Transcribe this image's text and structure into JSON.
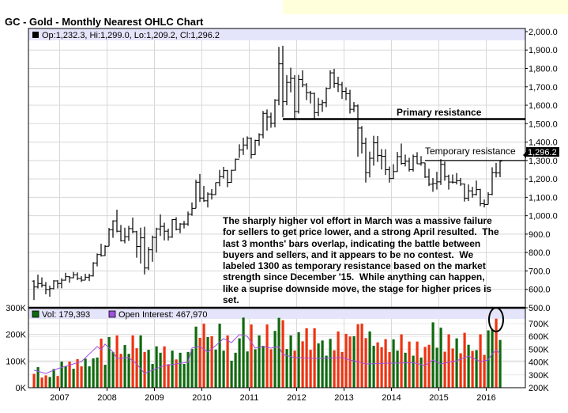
{
  "title": "GC - Gold - Monthly Nearest OHLC Chart",
  "price_legend": "Op:1,232.3, Hi:1,299.0, Lo:1,209.2, Cl:1,296.2",
  "last_price_label": "1,296.2",
  "volume_legend": {
    "vol": "Vol: 179,393",
    "oi": "Open Interest: 467,970"
  },
  "annotations": {
    "primary_resistance": "Primary resistance",
    "temporary_resistance": "Temporary resistance",
    "note_lines": [
      "The sharply higher vol effort in March was a massive failure",
      "for sellers to get price lower, and a strong April resulted.  The",
      "last 3 months' bars overlap, indicating the battle between",
      "buyers and sellers, and it appears to be no contest.  We",
      "labeled 1300 as temporary resistance based on the market",
      "strength since December '15.  While anything can happen,",
      "like a suprise downside move, the stage for higher prices is",
      "set."
    ]
  },
  "colors": {
    "up": "#0f6a0f",
    "down": "#ee3311",
    "oi": "#a050e0",
    "legend_bg": "#e4e4fa",
    "grid": "#d8d8d8",
    "highlight_box": "#ffffdc"
  },
  "chart_data": {
    "type": "ohlc",
    "title": "GC - Gold - Monthly Nearest OHLC Chart",
    "x_start": "2006-06",
    "x_end": "2016-04",
    "x_ticks": [
      "2007",
      "2008",
      "2009",
      "2010",
      "2011",
      "2012",
      "2013",
      "2014",
      "2015",
      "2016"
    ],
    "price_axis": {
      "range": [
        500,
        2000
      ],
      "ticks": [
        "500.0",
        "600.0",
        "700.0",
        "800.0",
        "900.0",
        "1,000.0",
        "1,100.0",
        "1,200.0",
        "1,300.0",
        "1,400.0",
        "1,500.0",
        "1,600.0",
        "1,700.0",
        "1,800.0",
        "1,900.0",
        "2,000.0"
      ]
    },
    "volume_axis": {
      "range_k": [
        0,
        300
      ],
      "ticks": [
        "0K",
        "100K",
        "200K",
        "300K"
      ]
    },
    "open_interest_axis": {
      "range_k": [
        200,
        750
      ],
      "ticks": [
        "200K",
        "300K",
        "400K",
        "500K",
        "600K",
        "700K"
      ]
    },
    "grid": true,
    "resistance_levels": {
      "primary": 1525,
      "temporary": 1300
    },
    "ohlc": [
      [
        645,
        650,
        542,
        613
      ],
      [
        613,
        680,
        605,
        632
      ],
      [
        632,
        665,
        610,
        623
      ],
      [
        623,
        640,
        573,
        599
      ],
      [
        599,
        620,
        560,
        604
      ],
      [
        604,
        650,
        600,
        646
      ],
      [
        646,
        650,
        605,
        632
      ],
      [
        632,
        660,
        606,
        650
      ],
      [
        650,
        690,
        647,
        669
      ],
      [
        669,
        672,
        636,
        663
      ],
      [
        663,
        695,
        660,
        679
      ],
      [
        679,
        692,
        650,
        659
      ],
      [
        659,
        672,
        640,
        650
      ],
      [
        650,
        685,
        650,
        666
      ],
      [
        666,
        685,
        645,
        673
      ],
      [
        673,
        748,
        670,
        743
      ],
      [
        743,
        795,
        725,
        789
      ],
      [
        789,
        848,
        778,
        783
      ],
      [
        783,
        840,
        782,
        834
      ],
      [
        834,
        934,
        834,
        923
      ],
      [
        923,
        975,
        880,
        972
      ],
      [
        972,
        1033,
        910,
        916
      ],
      [
        916,
        950,
        860,
        864
      ],
      [
        864,
        935,
        850,
        886
      ],
      [
        886,
        945,
        863,
        930
      ],
      [
        930,
        990,
        905,
        913
      ],
      [
        913,
        918,
        772,
        833
      ],
      [
        833,
        935,
        740,
        880
      ],
      [
        880,
        940,
        681,
        716
      ],
      [
        716,
        830,
        705,
        815
      ],
      [
        815,
        892,
        750,
        882
      ],
      [
        882,
        935,
        800,
        928
      ],
      [
        928,
        1007,
        890,
        942
      ],
      [
        942,
        962,
        866,
        916
      ],
      [
        916,
        930,
        865,
        884
      ],
      [
        884,
        982,
        880,
        979
      ],
      [
        979,
        992,
        920,
        926
      ],
      [
        926,
        960,
        905,
        955
      ],
      [
        955,
        972,
        931,
        955
      ],
      [
        955,
        1023,
        945,
        1008
      ],
      [
        1008,
        1072,
        1000,
        1040
      ],
      [
        1040,
        1195,
        1040,
        1182
      ],
      [
        1182,
        1227,
        1075,
        1096
      ],
      [
        1096,
        1162,
        1075,
        1081
      ],
      [
        1081,
        1127,
        1045,
        1118
      ],
      [
        1118,
        1145,
        1088,
        1115
      ],
      [
        1115,
        1180,
        1112,
        1180
      ],
      [
        1180,
        1249,
        1160,
        1212
      ],
      [
        1212,
        1265,
        1202,
        1245
      ],
      [
        1245,
        1249,
        1155,
        1181
      ],
      [
        1181,
        1250,
        1179,
        1247
      ],
      [
        1247,
        1310,
        1245,
        1307
      ],
      [
        1307,
        1388,
        1314,
        1357
      ],
      [
        1357,
        1424,
        1330,
        1384
      ],
      [
        1384,
        1431,
        1360,
        1421
      ],
      [
        1421,
        1425,
        1310,
        1332
      ],
      [
        1332,
        1413,
        1330,
        1409
      ],
      [
        1409,
        1448,
        1380,
        1439
      ],
      [
        1439,
        1569,
        1420,
        1556
      ],
      [
        1556,
        1577,
        1462,
        1536
      ],
      [
        1536,
        1560,
        1478,
        1502
      ],
      [
        1502,
        1633,
        1480,
        1628
      ],
      [
        1628,
        1917,
        1600,
        1825
      ],
      [
        1825,
        1923,
        1535,
        1620
      ],
      [
        1620,
        1763,
        1600,
        1724
      ],
      [
        1724,
        1804,
        1670,
        1746
      ],
      [
        1746,
        1764,
        1523,
        1566
      ],
      [
        1566,
        1765,
        1555,
        1740
      ],
      [
        1740,
        1790,
        1698,
        1711
      ],
      [
        1711,
        1720,
        1628,
        1669
      ],
      [
        1669,
        1678,
        1610,
        1664
      ],
      [
        1664,
        1669,
        1527,
        1560
      ],
      [
        1560,
        1640,
        1540,
        1604
      ],
      [
        1604,
        1630,
        1564,
        1614
      ],
      [
        1614,
        1697,
        1590,
        1691
      ],
      [
        1691,
        1790,
        1690,
        1776
      ],
      [
        1776,
        1798,
        1695,
        1719
      ],
      [
        1719,
        1755,
        1672,
        1712
      ],
      [
        1712,
        1727,
        1635,
        1675
      ],
      [
        1675,
        1697,
        1627,
        1663
      ],
      [
        1663,
        1684,
        1555,
        1578
      ],
      [
        1578,
        1617,
        1563,
        1596
      ],
      [
        1596,
        1604,
        1321,
        1476
      ],
      [
        1476,
        1487,
        1338,
        1393
      ],
      [
        1393,
        1424,
        1180,
        1234
      ],
      [
        1234,
        1348,
        1208,
        1312
      ],
      [
        1312,
        1434,
        1272,
        1396
      ],
      [
        1396,
        1433,
        1292,
        1327
      ],
      [
        1327,
        1362,
        1251,
        1323
      ],
      [
        1323,
        1361,
        1221,
        1250
      ],
      [
        1250,
        1267,
        1180,
        1202
      ],
      [
        1202,
        1280,
        1200,
        1240
      ],
      [
        1240,
        1346,
        1238,
        1321
      ],
      [
        1321,
        1392,
        1277,
        1284
      ],
      [
        1284,
        1332,
        1268,
        1296
      ],
      [
        1296,
        1315,
        1240,
        1250
      ],
      [
        1250,
        1332,
        1240,
        1322
      ],
      [
        1322,
        1345,
        1281,
        1282
      ],
      [
        1282,
        1324,
        1272,
        1287
      ],
      [
        1287,
        1288,
        1205,
        1210
      ],
      [
        1210,
        1255,
        1161,
        1171
      ],
      [
        1171,
        1205,
        1130,
        1175
      ],
      [
        1175,
        1239,
        1142,
        1184
      ],
      [
        1184,
        1307,
        1167,
        1279
      ],
      [
        1279,
        1294,
        1190,
        1213
      ],
      [
        1213,
        1223,
        1142,
        1183
      ],
      [
        1183,
        1224,
        1175,
        1182
      ],
      [
        1182,
        1232,
        1170,
        1190
      ],
      [
        1190,
        1205,
        1162,
        1172
      ],
      [
        1172,
        1175,
        1077,
        1095
      ],
      [
        1095,
        1170,
        1080,
        1135
      ],
      [
        1135,
        1157,
        1098,
        1115
      ],
      [
        1115,
        1191,
        1110,
        1142
      ],
      [
        1142,
        1146,
        1052,
        1065
      ],
      [
        1065,
        1088,
        1045,
        1061
      ],
      [
        1061,
        1128,
        1061,
        1116
      ],
      [
        1116,
        1263,
        1111,
        1234
      ],
      [
        1234,
        1287,
        1208,
        1232
      ],
      [
        1232.3,
        1299.0,
        1209.2,
        1296.2
      ]
    ],
    "volume_k": [
      52,
      77,
      38,
      46,
      40,
      70,
      44,
      98,
      80,
      98,
      71,
      107,
      80,
      109,
      80,
      110,
      113,
      184,
      86,
      190,
      134,
      196,
      127,
      160,
      127,
      196,
      148,
      196,
      134,
      142,
      89,
      155,
      131,
      155,
      88,
      139,
      106,
      131,
      89,
      134,
      145,
      229,
      187,
      240,
      190,
      193,
      143,
      240,
      139,
      196,
      101,
      131,
      185,
      263,
      136,
      237,
      144,
      196,
      157,
      237,
      144,
      213,
      262,
      253,
      145,
      196,
      139,
      208,
      174,
      223,
      142,
      223,
      166,
      177,
      120,
      183,
      140,
      211,
      134,
      202,
      192,
      193,
      238,
      240,
      186,
      211,
      157,
      170,
      152,
      182,
      134,
      181,
      139,
      200,
      131,
      173,
      120,
      173,
      113,
      153,
      161,
      245,
      150,
      225,
      135,
      200,
      147,
      185,
      129,
      206,
      161,
      138,
      141,
      200,
      123,
      215,
      218,
      259,
      179
    ],
    "open_interest_k": [
      [
        "2006-06",
        336
      ],
      [
        "2006-09",
        311
      ],
      [
        "2006-12",
        348
      ],
      [
        "2007-06",
        404
      ],
      [
        "2007-10",
        521
      ],
      [
        "2007-11",
        496
      ],
      [
        "2007-12",
        540
      ],
      [
        "2008-02",
        478
      ],
      [
        "2008-03",
        428
      ],
      [
        "2008-06",
        435
      ],
      [
        "2008-08",
        385
      ],
      [
        "2008-10",
        311
      ],
      [
        "2008-12",
        336
      ],
      [
        "2009-03",
        373
      ],
      [
        "2009-06",
        385
      ],
      [
        "2009-09",
        398
      ],
      [
        "2009-10",
        509
      ],
      [
        "2009-12",
        521
      ],
      [
        "2010-02",
        478
      ],
      [
        "2010-04",
        528
      ],
      [
        "2010-06",
        583
      ],
      [
        "2010-08",
        552
      ],
      [
        "2010-10",
        614
      ],
      [
        "2010-12",
        601
      ],
      [
        "2011-02",
        509
      ],
      [
        "2011-04",
        521
      ],
      [
        "2011-06",
        509
      ],
      [
        "2011-08",
        521
      ],
      [
        "2011-09",
        459
      ],
      [
        "2011-12",
        435
      ],
      [
        "2012-06",
        428
      ],
      [
        "2012-12",
        435
      ],
      [
        "2013-02",
        416
      ],
      [
        "2013-04",
        404
      ],
      [
        "2013-06",
        385
      ],
      [
        "2013-12",
        391
      ],
      [
        "2014-06",
        395
      ],
      [
        "2014-09",
        373
      ],
      [
        "2014-11",
        416
      ],
      [
        "2015-01",
        385
      ],
      [
        "2015-05",
        410
      ],
      [
        "2015-08",
        447
      ],
      [
        "2015-11",
        404
      ],
      [
        "2016-01",
        416
      ],
      [
        "2016-02",
        465
      ],
      [
        "2016-03",
        490
      ],
      [
        "2016-04",
        468
      ]
    ]
  }
}
